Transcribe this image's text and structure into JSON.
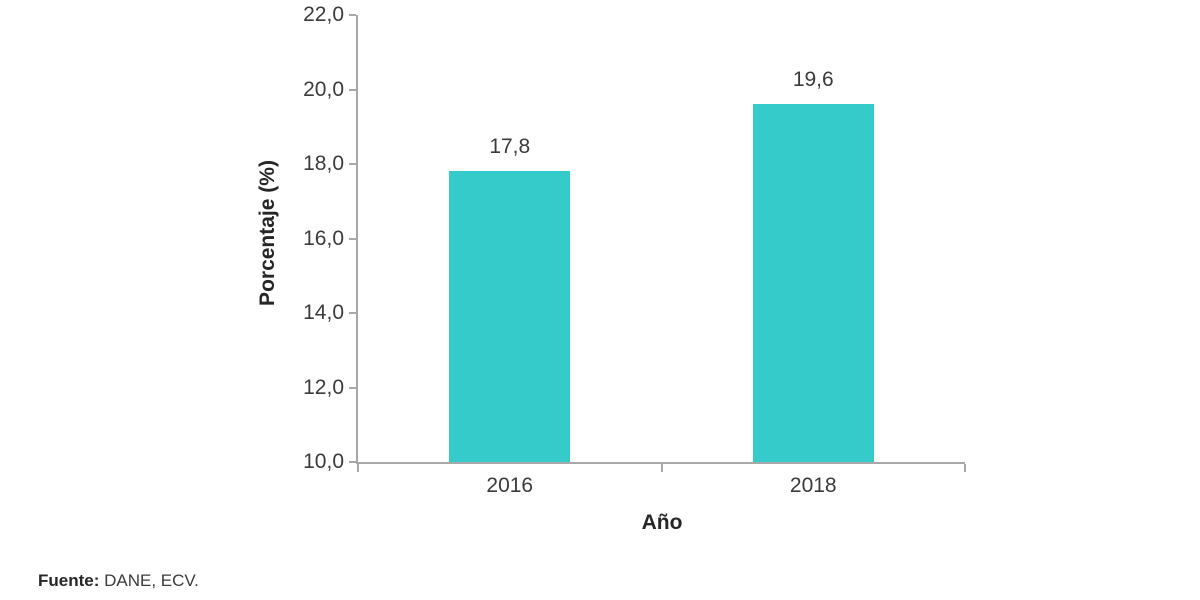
{
  "chart_data": {
    "type": "bar",
    "categories": [
      "2016",
      "2018"
    ],
    "values": [
      17.8,
      19.6
    ],
    "value_labels": [
      "17,8",
      "19,6"
    ],
    "title": "",
    "xlabel": "Año",
    "ylabel": "Porcentaje (%)",
    "ylim": [
      10,
      22
    ],
    "ytick_step": 2,
    "ytick_labels": [
      "10,0",
      "12,0",
      "14,0",
      "16,0",
      "18,0",
      "20,0",
      "22,0"
    ],
    "grid": false,
    "legend": "none",
    "bar_color": "#35cbcb",
    "axis_color": "#a8a8a8"
  },
  "source": {
    "label_bold": "Fuente:",
    "text": " DANE, ECV."
  }
}
